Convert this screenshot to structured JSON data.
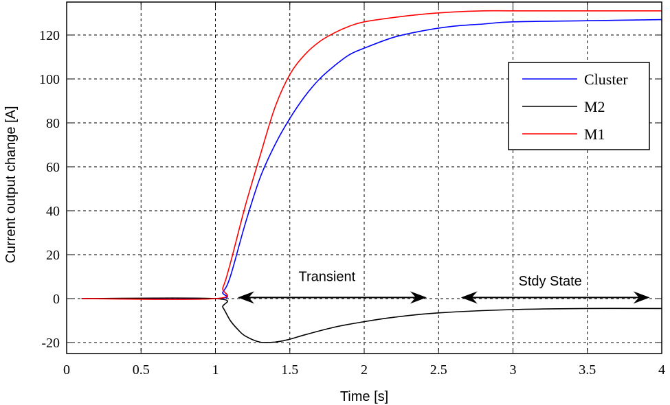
{
  "chart_data": {
    "type": "line",
    "title": "",
    "xlabel": "Time [s]",
    "ylabel": "Current output change [A]",
    "xlim": [
      0,
      4
    ],
    "ylim": [
      -25,
      135
    ],
    "xticks": [
      0,
      0.5,
      1,
      1.5,
      2,
      2.5,
      3,
      3.5,
      4
    ],
    "xtick_labels": [
      "0",
      "0.5",
      "1",
      "1.5",
      "2",
      "2.5",
      "3",
      "3.5",
      "4"
    ],
    "yticks": [
      -20,
      0,
      20,
      40,
      60,
      80,
      100,
      120
    ],
    "ytick_labels": [
      "-20",
      "0",
      "20",
      "40",
      "60",
      "80",
      "100",
      "120"
    ],
    "grid": true,
    "legend_position": "top-right",
    "series": [
      {
        "name": "Cluster",
        "color": "#0000ff",
        "x": [
          0.1,
          1.0,
          1.05,
          1.1,
          1.2,
          1.3,
          1.4,
          1.5,
          1.6,
          1.7,
          1.8,
          1.9,
          2.0,
          2.2,
          2.4,
          2.6,
          2.8,
          3.0,
          3.5,
          4.0
        ],
        "y": [
          0,
          0,
          3,
          10,
          34,
          55,
          70,
          82,
          92,
          100,
          106,
          111,
          114,
          119,
          122,
          124,
          125,
          126,
          126.5,
          127
        ]
      },
      {
        "name": "M2",
        "color": "#000000",
        "x": [
          0.1,
          1.0,
          1.05,
          1.1,
          1.15,
          1.2,
          1.3,
          1.4,
          1.5,
          1.6,
          1.8,
          2.0,
          2.2,
          2.5,
          3.0,
          3.5,
          4.0
        ],
        "y": [
          0,
          0,
          -4,
          -10,
          -14,
          -17,
          -19.8,
          -19.8,
          -18.5,
          -16.5,
          -13,
          -10.5,
          -8.5,
          -6.5,
          -5,
          -4.5,
          -4.5
        ]
      },
      {
        "name": "M1",
        "color": "#ff0000",
        "x": [
          0.1,
          1.0,
          1.05,
          1.1,
          1.2,
          1.3,
          1.4,
          1.5,
          1.6,
          1.7,
          1.8,
          1.9,
          2.0,
          2.2,
          2.4,
          2.6,
          2.8,
          3.0,
          3.5,
          4.0
        ],
        "y": [
          0,
          0,
          5,
          16,
          42,
          65,
          87,
          102,
          111,
          117,
          121,
          124,
          126,
          128,
          129.5,
          130.5,
          131,
          131,
          131,
          131
        ]
      }
    ],
    "annotations": [
      {
        "text": "Transient",
        "arrow_from": 1.15,
        "arrow_to": 2.42,
        "arrow_y": 0.5,
        "label_x": 1.75,
        "label_y": 8
      },
      {
        "text": "Stdy State",
        "arrow_from": 2.65,
        "arrow_to": 3.92,
        "arrow_y": 0.5,
        "label_x": 3.25,
        "label_y": 6
      }
    ]
  }
}
